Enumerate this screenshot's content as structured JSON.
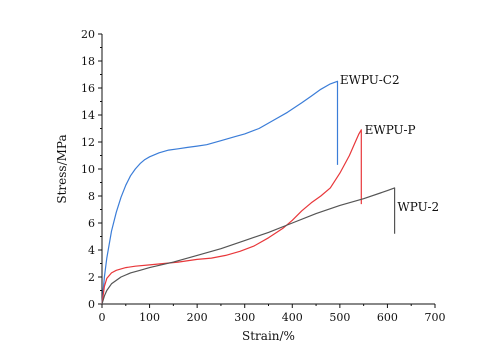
{
  "chart_data": {
    "type": "line",
    "title": "",
    "xlabel": "Strain/%",
    "ylabel": "Stress/MPa",
    "xlim": [
      0,
      700
    ],
    "ylim": [
      0,
      20
    ],
    "xticks": [
      0,
      100,
      200,
      300,
      400,
      500,
      600,
      700
    ],
    "yticks": [
      0,
      2,
      4,
      6,
      8,
      10,
      12,
      14,
      16,
      18,
      20
    ],
    "grid": false,
    "legend": "none",
    "series": [
      {
        "name": "EWPU-C2",
        "color": "#3b7dd8",
        "x": [
          0,
          5,
          10,
          20,
          30,
          40,
          50,
          60,
          70,
          80,
          90,
          100,
          120,
          140,
          160,
          180,
          200,
          220,
          250,
          280,
          300,
          330,
          360,
          390,
          420,
          440,
          460,
          480,
          495,
          495,
          495
        ],
        "y": [
          0,
          2.0,
          3.4,
          5.4,
          6.8,
          7.9,
          8.8,
          9.5,
          10.0,
          10.4,
          10.7,
          10.9,
          11.2,
          11.4,
          11.5,
          11.6,
          11.7,
          11.8,
          12.1,
          12.4,
          12.6,
          13.0,
          13.6,
          14.2,
          14.9,
          15.4,
          15.9,
          16.3,
          16.5,
          13.0,
          10.3
        ]
      },
      {
        "name": "EWPU-P",
        "color": "#e8373a",
        "x": [
          0,
          5,
          10,
          20,
          30,
          40,
          50,
          70,
          100,
          130,
          160,
          200,
          230,
          260,
          290,
          320,
          350,
          380,
          400,
          420,
          440,
          460,
          480,
          500,
          520,
          530,
          540,
          545,
          545,
          545
        ],
        "y": [
          0,
          1.3,
          1.9,
          2.3,
          2.5,
          2.6,
          2.7,
          2.8,
          2.9,
          3.0,
          3.1,
          3.3,
          3.4,
          3.6,
          3.9,
          4.3,
          4.9,
          5.6,
          6.2,
          6.9,
          7.5,
          8.0,
          8.6,
          9.7,
          11.0,
          11.8,
          12.6,
          12.9,
          10.0,
          7.4
        ]
      },
      {
        "name": "WPU-2",
        "color": "#555555",
        "x": [
          0,
          5,
          10,
          20,
          40,
          60,
          80,
          100,
          150,
          200,
          250,
          300,
          350,
          400,
          450,
          500,
          550,
          600,
          615,
          615
        ],
        "y": [
          0,
          0.6,
          1.0,
          1.5,
          2.0,
          2.3,
          2.5,
          2.7,
          3.1,
          3.6,
          4.1,
          4.7,
          5.3,
          6.0,
          6.7,
          7.3,
          7.8,
          8.4,
          8.6,
          5.2
        ]
      }
    ],
    "annotations": [
      {
        "text": "EWPU-C2",
        "x": 500,
        "y": 16.6
      },
      {
        "text": "EWPU-P",
        "x": 552,
        "y": 12.9
      },
      {
        "text": "WPU-2",
        "x": 621,
        "y": 7.2
      }
    ]
  }
}
